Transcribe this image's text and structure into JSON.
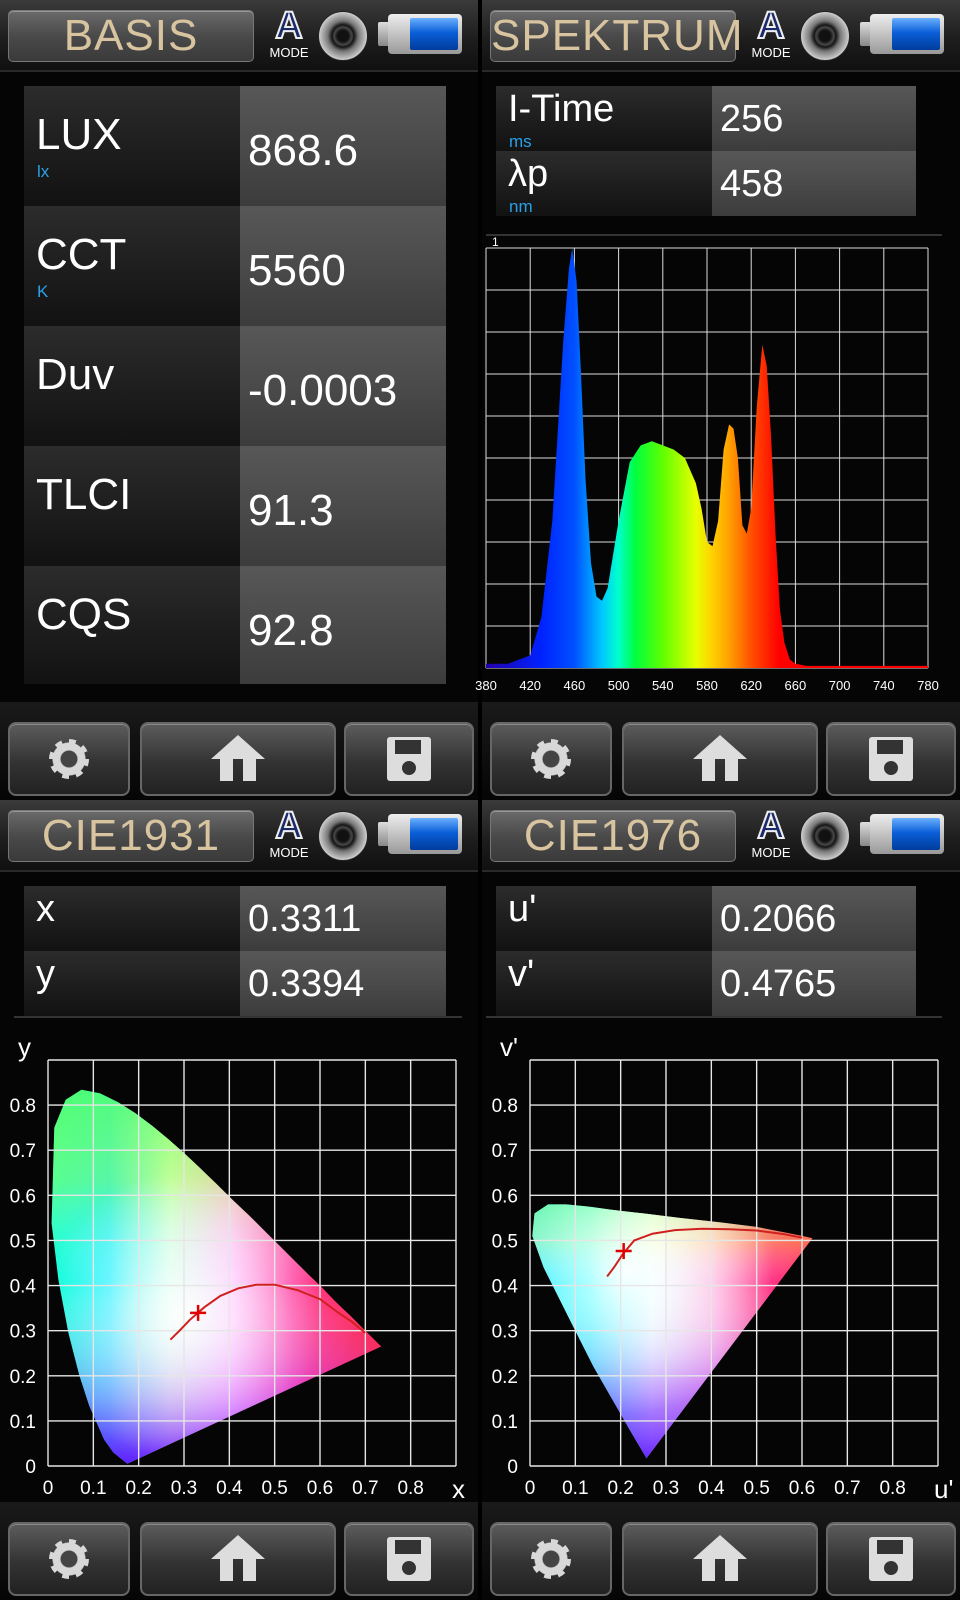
{
  "panels": {
    "basis": {
      "title": "BASIS",
      "mode": "A",
      "mode_label": "MODE",
      "rows": [
        {
          "label": "LUX",
          "unit": "lx",
          "value": "868.6"
        },
        {
          "label": "CCT",
          "unit": "K",
          "value": "5560"
        },
        {
          "label": "Duv",
          "unit": "",
          "value": "-0.0003"
        },
        {
          "label": "TLCI",
          "unit": "",
          "value": "91.3"
        },
        {
          "label": "CQS",
          "unit": "",
          "value": "92.8"
        }
      ]
    },
    "spektrum": {
      "title": "SPEKTRUM",
      "mode": "A",
      "mode_label": "MODE",
      "rows": [
        {
          "label": "I-Time",
          "unit": "ms",
          "value": "256"
        },
        {
          "label": "λp",
          "unit": "nm",
          "value": "458"
        }
      ]
    },
    "cie1931": {
      "title": "CIE1931",
      "mode": "A",
      "mode_label": "MODE",
      "rows": [
        {
          "label": "x",
          "value": "0.3311"
        },
        {
          "label": "y",
          "value": "0.3394"
        }
      ]
    },
    "cie1976": {
      "title": "CIE1976",
      "mode": "A",
      "mode_label": "MODE",
      "rows": [
        {
          "label": "u'",
          "value": "0.2066"
        },
        {
          "label": "v'",
          "value": "0.4765"
        }
      ]
    }
  },
  "battery_level": 0.72,
  "icons": [
    "settings-gear-icon",
    "home-icon",
    "save-floppy-icon",
    "shutter-icon",
    "battery-icon"
  ],
  "chart_data": [
    {
      "type": "area",
      "xlim": [
        380,
        780
      ],
      "ylim": [
        0,
        1
      ],
      "x_ticks": [
        380,
        420,
        460,
        500,
        540,
        580,
        620,
        660,
        700,
        740,
        780
      ],
      "y_tick_labels": [
        "1"
      ],
      "grid": true,
      "x": [
        380,
        400,
        420,
        430,
        440,
        450,
        455,
        458,
        462,
        466,
        470,
        475,
        480,
        485,
        490,
        500,
        510,
        520,
        530,
        540,
        550,
        560,
        570,
        575,
        580,
        585,
        590,
        595,
        600,
        604,
        608,
        612,
        616,
        620,
        625,
        630,
        634,
        638,
        642,
        646,
        650,
        655,
        660,
        670,
        680,
        700,
        740,
        780
      ],
      "y": [
        0.01,
        0.01,
        0.03,
        0.12,
        0.35,
        0.78,
        0.95,
        1.0,
        0.92,
        0.7,
        0.45,
        0.25,
        0.17,
        0.16,
        0.19,
        0.35,
        0.49,
        0.53,
        0.54,
        0.53,
        0.52,
        0.5,
        0.44,
        0.38,
        0.3,
        0.29,
        0.35,
        0.52,
        0.58,
        0.57,
        0.5,
        0.34,
        0.32,
        0.38,
        0.62,
        0.77,
        0.72,
        0.55,
        0.32,
        0.14,
        0.06,
        0.02,
        0.01,
        0.005,
        0.005,
        0.005,
        0.005,
        0.005
      ]
    },
    {
      "type": "scatter",
      "xlabel": "x",
      "ylabel": "y",
      "xlim": [
        0,
        0.9
      ],
      "ylim": [
        0,
        0.9
      ],
      "x_ticks": [
        0,
        0.1,
        0.2,
        0.3,
        0.4,
        0.5,
        0.6,
        0.7,
        0.8
      ],
      "y_ticks": [
        0,
        0.1,
        0.2,
        0.3,
        0.4,
        0.5,
        0.6,
        0.7,
        0.8
      ],
      "grid": true,
      "locus": [
        [
          0.175,
          0.005
        ],
        [
          0.144,
          0.03
        ],
        [
          0.124,
          0.058
        ],
        [
          0.091,
          0.133
        ],
        [
          0.069,
          0.201
        ],
        [
          0.045,
          0.295
        ],
        [
          0.023,
          0.413
        ],
        [
          0.008,
          0.538
        ],
        [
          0.014,
          0.75
        ],
        [
          0.039,
          0.812
        ],
        [
          0.074,
          0.834
        ],
        [
          0.115,
          0.826
        ],
        [
          0.155,
          0.806
        ],
        [
          0.193,
          0.782
        ],
        [
          0.23,
          0.754
        ],
        [
          0.266,
          0.724
        ],
        [
          0.302,
          0.692
        ],
        [
          0.337,
          0.659
        ],
        [
          0.373,
          0.624
        ],
        [
          0.408,
          0.589
        ],
        [
          0.444,
          0.555
        ],
        [
          0.479,
          0.52
        ],
        [
          0.512,
          0.487
        ],
        [
          0.544,
          0.455
        ],
        [
          0.575,
          0.424
        ],
        [
          0.603,
          0.397
        ],
        [
          0.627,
          0.372
        ],
        [
          0.648,
          0.351
        ],
        [
          0.666,
          0.334
        ],
        [
          0.68,
          0.32
        ],
        [
          0.692,
          0.308
        ],
        [
          0.735,
          0.265
        ]
      ],
      "planckian": [
        [
          0.27,
          0.28
        ],
        [
          0.29,
          0.3
        ],
        [
          0.313,
          0.324
        ],
        [
          0.345,
          0.352
        ],
        [
          0.38,
          0.377
        ],
        [
          0.42,
          0.394
        ],
        [
          0.46,
          0.402
        ],
        [
          0.5,
          0.402
        ],
        [
          0.55,
          0.39
        ],
        [
          0.6,
          0.37
        ],
        [
          0.64,
          0.34
        ],
        [
          0.67,
          0.32
        ],
        [
          0.7,
          0.295
        ]
      ],
      "point": {
        "x": 0.3311,
        "y": 0.3394
      }
    },
    {
      "type": "scatter",
      "xlabel": "u'",
      "ylabel": "v'",
      "xlim": [
        0,
        0.9
      ],
      "ylim": [
        0,
        0.9
      ],
      "x_ticks": [
        0,
        0.1,
        0.2,
        0.3,
        0.4,
        0.5,
        0.6,
        0.7,
        0.8
      ],
      "y_ticks": [
        0,
        0.1,
        0.2,
        0.3,
        0.4,
        0.5,
        0.6,
        0.7,
        0.8
      ],
      "grid": true,
      "locus": [
        [
          0.257,
          0.017
        ],
        [
          0.22,
          0.08
        ],
        [
          0.18,
          0.15
        ],
        [
          0.14,
          0.22
        ],
        [
          0.1,
          0.3
        ],
        [
          0.06,
          0.38
        ],
        [
          0.03,
          0.44
        ],
        [
          0.005,
          0.51
        ],
        [
          0.01,
          0.56
        ],
        [
          0.04,
          0.58
        ],
        [
          0.08,
          0.58
        ],
        [
          0.13,
          0.575
        ],
        [
          0.18,
          0.568
        ],
        [
          0.25,
          0.56
        ],
        [
          0.33,
          0.55
        ],
        [
          0.42,
          0.54
        ],
        [
          0.5,
          0.53
        ],
        [
          0.56,
          0.518
        ],
        [
          0.6,
          0.51
        ],
        [
          0.623,
          0.505
        ]
      ],
      "planckian": [
        [
          0.17,
          0.42
        ],
        [
          0.185,
          0.44
        ],
        [
          0.205,
          0.47
        ],
        [
          0.23,
          0.5
        ],
        [
          0.27,
          0.515
        ],
        [
          0.32,
          0.523
        ],
        [
          0.38,
          0.526
        ],
        [
          0.44,
          0.525
        ],
        [
          0.5,
          0.522
        ],
        [
          0.56,
          0.514
        ],
        [
          0.6,
          0.506
        ]
      ],
      "point": {
        "x": 0.2066,
        "y": 0.4765
      }
    }
  ]
}
